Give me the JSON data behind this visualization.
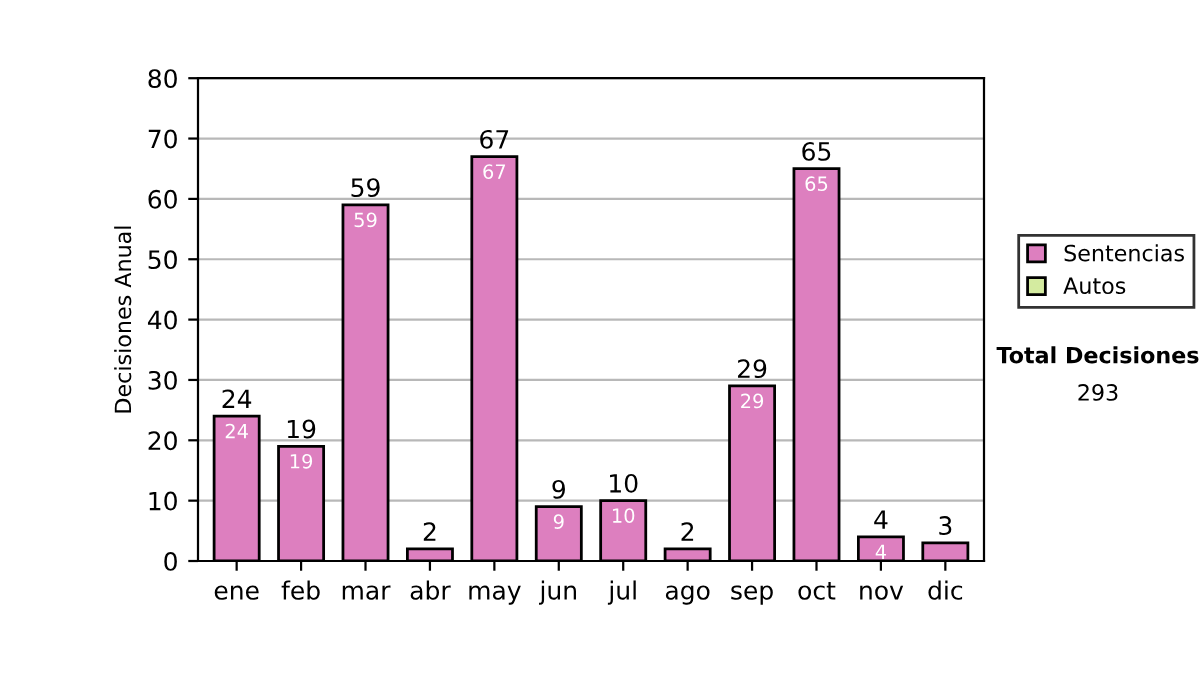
{
  "chart_data": {
    "type": "bar",
    "stacked": true,
    "ylabel": "Decisiones Anual",
    "categories": [
      "ene",
      "feb",
      "mar",
      "abr",
      "may",
      "jun",
      "jul",
      "ago",
      "sep",
      "oct",
      "nov",
      "dic"
    ],
    "series": [
      {
        "name": "Sentencias",
        "color": "#dd7fbf",
        "values": [
          24,
          19,
          59,
          2,
          67,
          9,
          10,
          2,
          29,
          65,
          4,
          3
        ],
        "value_labels": [
          "24",
          "19",
          "59",
          null,
          "67",
          "9",
          "10",
          null,
          "29",
          "65",
          "4",
          null
        ]
      },
      {
        "name": "Autos",
        "color": "#d4eba0",
        "values": [
          0,
          0,
          0,
          0,
          0,
          0,
          0,
          0,
          0,
          0,
          0,
          0
        ]
      }
    ],
    "totals": [
      "24",
      "19",
      "59",
      "2",
      "67",
      "9",
      "10",
      "2",
      "29",
      "65",
      "4",
      "3"
    ],
    "ylim": [
      0,
      80
    ],
    "yticks": [
      0,
      10,
      20,
      30,
      40,
      50,
      60,
      70,
      80
    ],
    "grid": "y",
    "legend": "right",
    "annotations": [
      "Total Decisiones",
      "293"
    ]
  }
}
